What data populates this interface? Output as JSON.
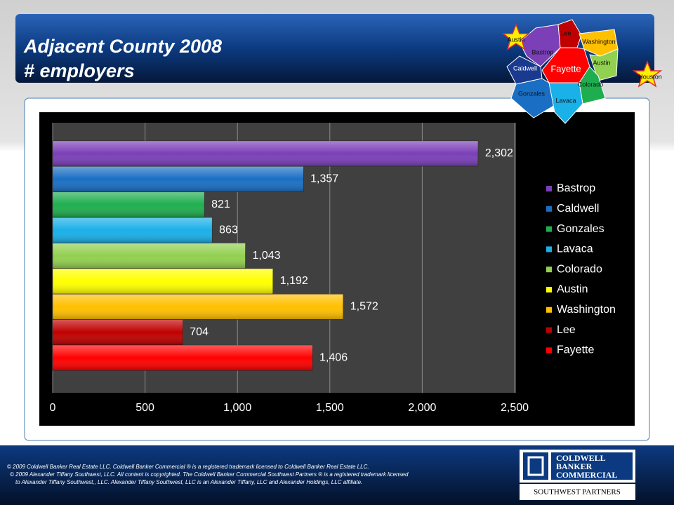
{
  "slide": {
    "title_lines": [
      "Adjacent County 2008",
      "# employers"
    ],
    "footer_lines": [
      "© 2009 Coldwell Banker Real Estate LLC. Coldwell Banker Commercial ® is a registered trademark licensed to Coldwell Banker Real Estate LLC.",
      "© 2009 Alexander Tiffany Southwest, LLC. All content is copyrighted. The Coldwell Banker Commercial Southwest Partners ® is a registered trademark licensed",
      "to Alexander Tiffany Southwest,, LLC.  Alexander Tiffany Southwest, LLC is an Alexander Tiffany, LLC and Alexander Holdings, LLC affiliate."
    ],
    "logo_lines": [
      "COLDWELL",
      "BANKER",
      "COMMERCIAL"
    ],
    "logo_sub": "SOUTHWEST PARTNERS",
    "map_labels": [
      "Austin",
      "Lee",
      "Washington",
      "Bastrop",
      "Caldwell",
      "Fayette",
      "Austin",
      "Colorado",
      "Gonzales",
      "Lavaca",
      "Houston"
    ]
  },
  "chart_data": {
    "type": "hbar",
    "categories": [
      "Bastrop",
      "Caldwell",
      "Gonzales",
      "Lavaca",
      "Colorado",
      "Austin",
      "Washington",
      "Lee",
      "Fayette"
    ],
    "values": [
      2302,
      1357,
      821,
      863,
      1043,
      1192,
      1572,
      704,
      1406
    ],
    "value_labels": [
      "2,302",
      "1,357",
      "821",
      "863",
      "1,043",
      "1,192",
      "1,572",
      "704",
      "1,406"
    ],
    "colors": [
      "#7b3fb8",
      "#1a6fc4",
      "#1fae4f",
      "#1ab0e8",
      "#92d050",
      "#ffff00",
      "#ffc000",
      "#c00000",
      "#ff0000"
    ],
    "xlim": [
      0,
      2500
    ],
    "xticks": [
      0,
      500,
      {
        "value": 1000,
        "label": "1,000"
      },
      {
        "value": 1500,
        "label": "1,500"
      },
      {
        "value": 2000,
        "label": "2,000"
      },
      {
        "value": 2500,
        "label": "2,500"
      }
    ],
    "grid": true,
    "legend": "right"
  }
}
